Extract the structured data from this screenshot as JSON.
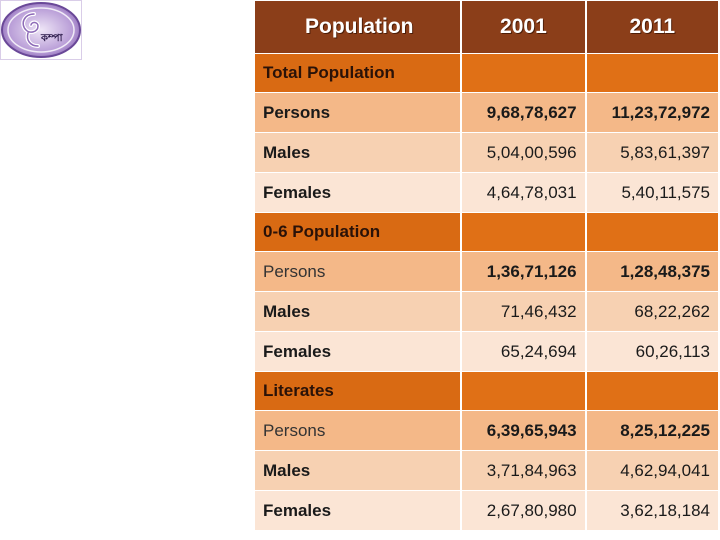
{
  "logo": {
    "icon": "swirl-emblem-icon",
    "text": "কম্পা"
  },
  "table": {
    "headers": [
      "Population",
      "2001",
      "2011"
    ],
    "sections": [
      {
        "title": "Total Population",
        "rows": [
          {
            "label": "Persons",
            "v2001": "9,68,78,627",
            "v2011": "11,23,72,972"
          },
          {
            "label": "Males",
            "v2001": "5,04,00,596",
            "v2011": "5,83,61,397"
          },
          {
            "label": "Females",
            "v2001": "4,64,78,031",
            "v2011": "5,40,11,575"
          }
        ]
      },
      {
        "title": "0-6 Population",
        "rows": [
          {
            "label": "Persons",
            "v2001": "1,36,71,126",
            "v2011": "1,28,48,375"
          },
          {
            "label": "Males",
            "v2001": "71,46,432",
            "v2011": "68,22,262"
          },
          {
            "label": "Females",
            "v2001": "65,24,694",
            "v2011": "60,26,113"
          }
        ]
      },
      {
        "title": "Literates",
        "rows": [
          {
            "label": "Persons",
            "v2001": "6,39,65,943",
            "v2011": "8,25,12,225"
          },
          {
            "label": "Males",
            "v2001": "3,71,84,963",
            "v2011": "4,62,94,041"
          },
          {
            "label": "Females",
            "v2001": "2,67,80,980",
            "v2011": "3,62,18,184"
          }
        ]
      }
    ]
  },
  "colors": {
    "header": "#8b3e19",
    "section": "#e07016",
    "row_persons": "#f4b888",
    "row_males": "#f7d1b2",
    "row_females": "#fbe5d5"
  }
}
